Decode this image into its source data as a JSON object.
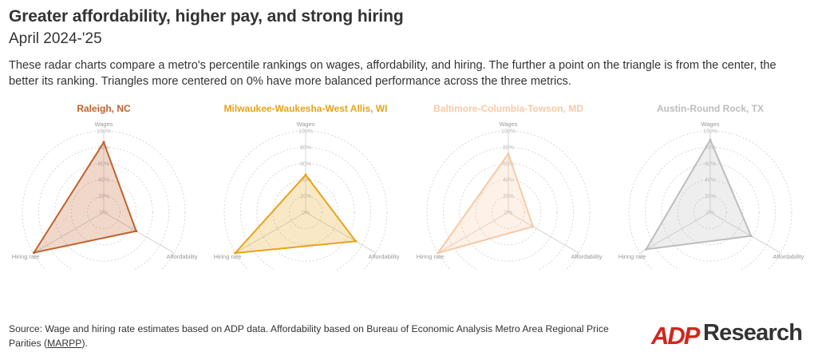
{
  "header": {
    "title": "Greater affordability, higher pay, and strong hiring",
    "subtitle": "April 2024-'25",
    "description": "These radar charts compare a metro's percentile rankings on wages, affordability, and hiring. The further a point on the triangle is from the center, the better its ranking. Triangles more centered on 0% have more balanced performance across the three metrics."
  },
  "chart_data": [
    {
      "type": "radar",
      "title": "Raleigh, NC",
      "axes": [
        "Wages",
        "Affordability",
        "Hiring rate"
      ],
      "ticks": [
        "0%",
        "20%",
        "40%",
        "60%",
        "80%",
        "100%"
      ],
      "values": [
        86,
        46,
        99
      ],
      "color": "#c0622d"
    },
    {
      "type": "radar",
      "title": "Milwaukee-Waukesha-West Allis, WI",
      "axes": [
        "Wages",
        "Affordability",
        "Hiring rate"
      ],
      "ticks": [
        "0%",
        "20%",
        "40%",
        "60%",
        "80%",
        "100%"
      ],
      "values": [
        46,
        71,
        100
      ],
      "color": "#e8a317"
    },
    {
      "type": "radar",
      "title": "Baltimore-Columbia-Towson, MD",
      "axes": [
        "Wages",
        "Affordability",
        "Hiring rate"
      ],
      "ticks": [
        "0%",
        "20%",
        "40%",
        "60%",
        "80%",
        "100%"
      ],
      "values": [
        72,
        35,
        100
      ],
      "color": "#f9c9a4"
    },
    {
      "type": "radar",
      "title": "Austin-Round Rock, TX",
      "axes": [
        "Wages",
        "Affordability",
        "Hiring rate"
      ],
      "ticks": [
        "0%",
        "20%",
        "40%",
        "60%",
        "80%",
        "100%"
      ],
      "values": [
        89,
        58,
        91
      ],
      "color": "#bdbdbd"
    }
  ],
  "footer": {
    "source_prefix": "Source: Wage and hiring rate estimates based on ADP data. Affordability based on Bureau of Economic Analysis Metro Area Regional Price Parities (",
    "source_link": "MARPP",
    "source_suffix": ").",
    "logo_mark": "ADP",
    "logo_text": "Research",
    "logo_color": "#d0271d"
  }
}
